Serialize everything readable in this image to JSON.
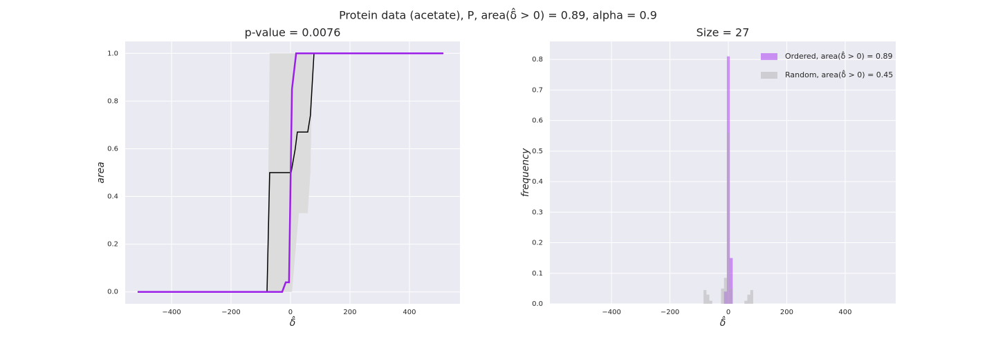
{
  "title": "Protein data (acetate), P, area(δ̂ > 0) = 0.89, alpha = 0.9",
  "chart_data": [
    {
      "type": "line",
      "title": "p-value = 0.0076",
      "x_label": "δ̂",
      "y_label": "area",
      "xlim": [
        -556,
        570
      ],
      "ylim": [
        -0.05,
        1.05
      ],
      "grid": true,
      "xticks": [
        {
          "value": -400,
          "label": "−400"
        },
        {
          "value": -200,
          "label": "−200"
        },
        0,
        200,
        400
      ],
      "yticks": [
        {
          "value": 0,
          "label": "0.0"
        },
        0.2,
        0.4,
        0.6,
        0.8,
        {
          "value": 1,
          "label": "1.0"
        }
      ],
      "band": {
        "color": "#dcdcdc",
        "x": [
          -514,
          -79,
          -70,
          -5,
          5,
          28,
          58,
          67,
          74,
          514
        ],
        "lower": [
          0,
          0,
          0,
          0,
          0,
          0.33,
          0.33,
          0.5,
          1,
          1
        ],
        "upper": [
          0,
          0,
          1,
          1,
          1,
          1,
          1,
          1,
          1,
          1
        ]
      },
      "series": [
        {
          "color": "#000000",
          "x": [
            -514,
            -79,
            -70,
            2,
            16,
            23,
            58,
            67,
            79,
            514
          ],
          "values": [
            0,
            0,
            0.5,
            0.5,
            0.6,
            0.67,
            0.67,
            0.74,
            1,
            1
          ]
        },
        {
          "color": "#9b1fe8",
          "x": [
            -514,
            -28,
            -16,
            -5,
            5,
            19,
            514
          ],
          "values": [
            0,
            0,
            0.04,
            0.04,
            0.85,
            1,
            1
          ]
        }
      ]
    },
    {
      "type": "histogram",
      "title": "Size = 27",
      "x_label": "δ̂",
      "y_label": "frequency",
      "xlim": [
        -611,
        573
      ],
      "ylim": [
        0,
        0.859
      ],
      "grid": true,
      "legend": "upper right",
      "xticks": [
        {
          "value": -400,
          "label": "−400"
        },
        {
          "value": -200,
          "label": "−200"
        },
        0,
        200,
        400
      ],
      "yticks": [
        {
          "value": 0,
          "label": "0.0"
        },
        0.1,
        0.2,
        0.3,
        0.4,
        0.5,
        0.6,
        0.7,
        0.8
      ],
      "series": [
        {
          "name": "Ordered, area(δ̂ > 0) = 0.89",
          "color": "#a020f0",
          "bins": [
            -514,
            -25,
            -15,
            -5,
            5,
            15,
            514
          ],
          "values": [
            0,
            0,
            0.04,
            0.81,
            0.15,
            0
          ]
        },
        {
          "name": "Random, area(δ̂ > 0) = 0.45",
          "color": "#aaaaaa",
          "bins": [
            -514,
            -85,
            -75,
            -65,
            -55,
            -25,
            -15,
            -5,
            5,
            15,
            25,
            55,
            65,
            75,
            85,
            514
          ],
          "values": [
            0,
            0.045,
            0.03,
            0.01,
            0,
            0.05,
            0.085,
            0.56,
            0.05,
            0,
            0,
            0.01,
            0.03,
            0.045,
            0
          ]
        }
      ]
    }
  ]
}
